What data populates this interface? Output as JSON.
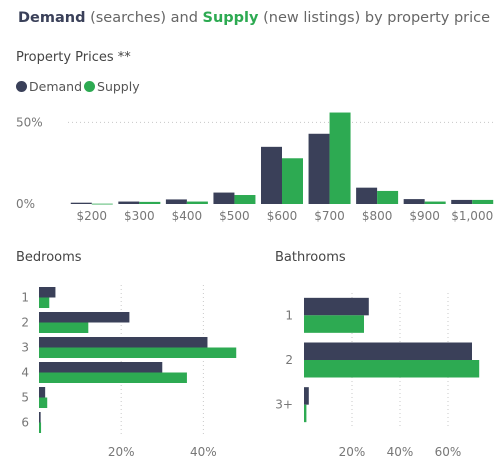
{
  "header": {
    "demand_word": "Demand",
    "demand_rest": " (searches) and ",
    "supply_word": "Supply",
    "supply_rest": " (new listings) by property price"
  },
  "colors": {
    "demand": "#3a4059",
    "supply": "#2daa52",
    "grid": "#c8c8c8",
    "tick": "#777777"
  },
  "chart_data": [
    {
      "type": "bar",
      "title": "Property Prices **",
      "categories": [
        "$200",
        "$300",
        "$400",
        "$500",
        "$600",
        "$700",
        "$800",
        "$900",
        "$1,000"
      ],
      "series": [
        {
          "name": "Demand",
          "values": [
            0.8,
            1.5,
            2.8,
            7,
            35,
            43,
            10,
            3,
            2.5
          ]
        },
        {
          "name": "Supply",
          "values": [
            0.2,
            1.3,
            1.5,
            5.5,
            28,
            56,
            8,
            1.5,
            2.5
          ]
        }
      ],
      "yticks": [
        "0%",
        "50%"
      ],
      "ylim": [
        0,
        60
      ],
      "legend": "top-left"
    },
    {
      "type": "bar",
      "orientation": "horizontal",
      "title": "Bedrooms",
      "categories": [
        "1",
        "2",
        "3",
        "4",
        "5",
        "6"
      ],
      "series": [
        {
          "name": "Demand",
          "values": [
            4,
            22,
            41,
            30,
            1.5,
            0.4
          ]
        },
        {
          "name": "Supply",
          "values": [
            2.5,
            12,
            48,
            36,
            2,
            0.5
          ]
        }
      ],
      "xticks": [
        "20%",
        "40%"
      ],
      "xlim": [
        0,
        55
      ]
    },
    {
      "type": "bar",
      "orientation": "horizontal",
      "title": "Bathrooms",
      "categories": [
        "1",
        "2",
        "3+"
      ],
      "series": [
        {
          "name": "Demand",
          "values": [
            27,
            70,
            2
          ]
        },
        {
          "name": "Supply",
          "values": [
            25,
            73,
            1
          ]
        }
      ],
      "xticks": [
        "20%",
        "40%",
        "60%"
      ],
      "xlim": [
        0,
        80
      ]
    }
  ]
}
